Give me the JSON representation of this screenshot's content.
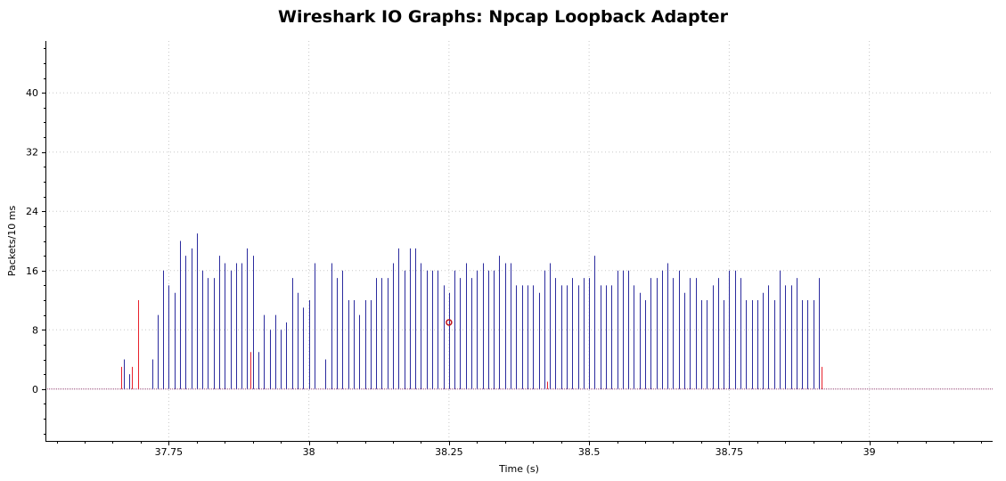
{
  "chart_data": {
    "type": "bar",
    "title": "Wireshark IO Graphs: Npcap Loopback Adapter",
    "xlabel": "Time (s)",
    "ylabel": "Packets/10 ms",
    "xlim": [
      37.53,
      39.22
    ],
    "ylim": [
      -7,
      47
    ],
    "xticks": [
      37.75,
      38,
      38.25,
      38.5,
      38.75,
      39
    ],
    "xtick_labels": [
      "37.75",
      "38",
      "38.25",
      "38.5",
      "38.75",
      "39"
    ],
    "yticks": [
      0,
      8,
      16,
      24,
      32,
      40
    ],
    "ytick_labels": [
      "0",
      "8",
      "16",
      "24",
      "32",
      "40"
    ],
    "grid": true,
    "series": [
      {
        "color": "#2b2b9e",
        "style": "impulse",
        "points": [
          [
            37.67,
            4
          ],
          [
            37.68,
            2
          ],
          [
            37.72,
            4
          ],
          [
            37.73,
            10
          ],
          [
            37.74,
            16
          ],
          [
            37.75,
            14
          ],
          [
            37.76,
            13
          ],
          [
            37.77,
            20
          ],
          [
            37.78,
            18
          ],
          [
            37.79,
            19
          ],
          [
            37.8,
            21
          ],
          [
            37.81,
            16
          ],
          [
            37.82,
            15
          ],
          [
            37.83,
            15
          ],
          [
            37.84,
            18
          ],
          [
            37.85,
            17
          ],
          [
            37.86,
            16
          ],
          [
            37.87,
            17
          ],
          [
            37.88,
            17
          ],
          [
            37.89,
            19
          ],
          [
            37.9,
            18
          ],
          [
            37.91,
            5
          ],
          [
            37.92,
            10
          ],
          [
            37.93,
            8
          ],
          [
            37.94,
            10
          ],
          [
            37.95,
            8
          ],
          [
            37.96,
            9
          ],
          [
            37.97,
            15
          ],
          [
            37.98,
            13
          ],
          [
            37.99,
            11
          ],
          [
            38.0,
            12
          ],
          [
            38.01,
            17
          ],
          [
            38.03,
            4
          ],
          [
            38.04,
            17
          ],
          [
            38.05,
            15
          ],
          [
            38.06,
            16
          ],
          [
            38.07,
            12
          ],
          [
            38.08,
            12
          ],
          [
            38.09,
            10
          ],
          [
            38.1,
            12
          ],
          [
            38.11,
            12
          ],
          [
            38.12,
            15
          ],
          [
            38.13,
            15
          ],
          [
            38.14,
            15
          ],
          [
            38.15,
            17
          ],
          [
            38.16,
            19
          ],
          [
            38.17,
            16
          ],
          [
            38.18,
            19
          ],
          [
            38.19,
            19
          ],
          [
            38.2,
            17
          ],
          [
            38.21,
            16
          ],
          [
            38.22,
            16
          ],
          [
            38.23,
            16
          ],
          [
            38.24,
            14
          ],
          [
            38.25,
            13
          ],
          [
            38.26,
            16
          ],
          [
            38.27,
            15
          ],
          [
            38.28,
            17
          ],
          [
            38.29,
            15
          ],
          [
            38.3,
            16
          ],
          [
            38.31,
            17
          ],
          [
            38.32,
            16
          ],
          [
            38.33,
            16
          ],
          [
            38.34,
            18
          ],
          [
            38.35,
            17
          ],
          [
            38.36,
            17
          ],
          [
            38.37,
            14
          ],
          [
            38.38,
            14
          ],
          [
            38.39,
            14
          ],
          [
            38.4,
            14
          ],
          [
            38.41,
            13
          ],
          [
            38.42,
            16
          ],
          [
            38.43,
            17
          ],
          [
            38.44,
            15
          ],
          [
            38.45,
            14
          ],
          [
            38.46,
            14
          ],
          [
            38.47,
            15
          ],
          [
            38.48,
            14
          ],
          [
            38.49,
            15
          ],
          [
            38.5,
            15
          ],
          [
            38.51,
            18
          ],
          [
            38.52,
            14
          ],
          [
            38.53,
            14
          ],
          [
            38.54,
            14
          ],
          [
            38.55,
            16
          ],
          [
            38.56,
            16
          ],
          [
            38.57,
            16
          ],
          [
            38.58,
            14
          ],
          [
            38.59,
            13
          ],
          [
            38.6,
            12
          ],
          [
            38.61,
            15
          ],
          [
            38.62,
            15
          ],
          [
            38.63,
            16
          ],
          [
            38.64,
            17
          ],
          [
            38.65,
            15
          ],
          [
            38.66,
            16
          ],
          [
            38.67,
            13
          ],
          [
            38.68,
            15
          ],
          [
            38.69,
            15
          ],
          [
            38.7,
            12
          ],
          [
            38.71,
            12
          ],
          [
            38.72,
            14
          ],
          [
            38.73,
            15
          ],
          [
            38.74,
            12
          ],
          [
            38.75,
            16
          ],
          [
            38.76,
            16
          ],
          [
            38.77,
            15
          ],
          [
            38.78,
            12
          ],
          [
            38.79,
            12
          ],
          [
            38.8,
            12
          ],
          [
            38.81,
            13
          ],
          [
            38.82,
            14
          ],
          [
            38.83,
            12
          ],
          [
            38.84,
            16
          ],
          [
            38.85,
            14
          ],
          [
            38.86,
            14
          ],
          [
            38.87,
            15
          ],
          [
            38.88,
            12
          ],
          [
            38.89,
            12
          ],
          [
            38.9,
            12
          ],
          [
            38.91,
            15
          ]
        ]
      },
      {
        "color": "#e8222c",
        "style": "impulse",
        "points": [
          [
            37.665,
            3
          ],
          [
            37.685,
            3
          ],
          [
            37.695,
            12
          ],
          [
            37.895,
            5
          ],
          [
            38.425,
            1
          ],
          [
            38.915,
            3
          ]
        ]
      }
    ],
    "marker": {
      "x": 38.25,
      "y": 9,
      "color": "#c0141c"
    }
  }
}
